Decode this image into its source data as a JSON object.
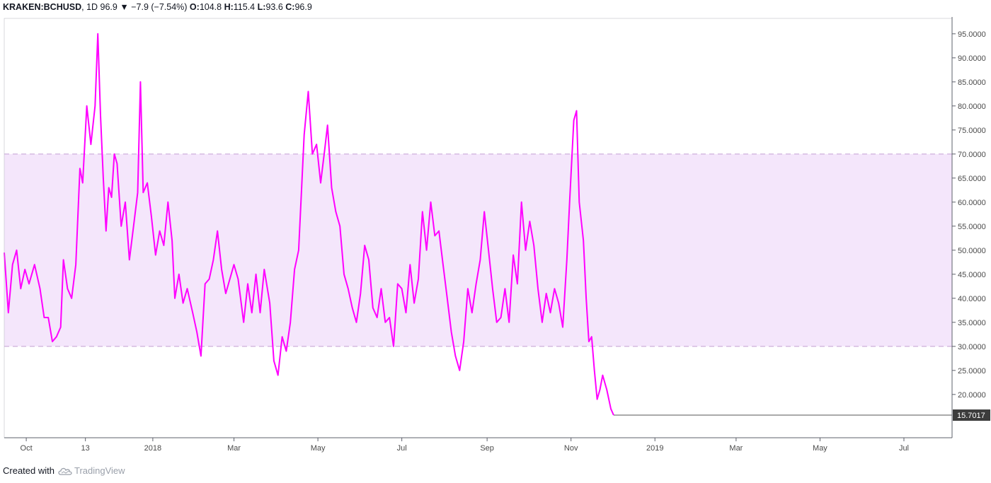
{
  "header": {
    "symbol": "KRAKEN:BCHUSD",
    "interval": "1D",
    "last": "96.9",
    "change_arrow": "▼",
    "change": "−7.9 (−7.54%)",
    "o_label": "O:",
    "o": "104.8",
    "h_label": "H:",
    "h": "115.4",
    "l_label": "L:",
    "l": "93.6",
    "c_label": "C:",
    "c": "96.9"
  },
  "footer": {
    "created_with": "Created with",
    "brand": "TradingView",
    "logo_icon": "tradingview-cloud-icon"
  },
  "colors": {
    "line": "#ff00ff",
    "band_fill": "#f4e6fb",
    "band_border": "#c9a8d8",
    "axis_border": "#5d606b",
    "price_label_bg": "#3c3c3c"
  },
  "chart_data": {
    "type": "line",
    "title": "",
    "xlabel": "",
    "ylabel": "",
    "ylim": [
      11.0,
      98.5
    ],
    "grid": false,
    "band": {
      "upper": 70.0,
      "lower": 30.0
    },
    "last_value_label": "15.7017",
    "last_value": 15.7017,
    "y_ticks": [
      20,
      25,
      30,
      35,
      40,
      45,
      50,
      55,
      60,
      65,
      70,
      75,
      80,
      85,
      90,
      95
    ],
    "y_tick_labels": [
      "20.0000",
      "25.0000",
      "30.0000",
      "35.0000",
      "40.0000",
      "45.0000",
      "50.0000",
      "55.0000",
      "60.0000",
      "65.0000",
      "70.0000",
      "75.0000",
      "80.0000",
      "85.0000",
      "90.0000",
      "95.0000"
    ],
    "x_tick_labels": [
      "Oct",
      "13",
      "2018",
      "Mar",
      "May",
      "Jul",
      "Sep",
      "Nov",
      "2019",
      "Mar",
      "May",
      "Jul"
    ],
    "x_ticks": [
      "2017-10-01",
      "2017-11-13",
      "2018-01-01",
      "2018-03-01",
      "2018-05-01",
      "2018-07-01",
      "2018-09-01",
      "2018-11-01",
      "2019-01-01",
      "2019-03-01",
      "2019-05-01",
      "2019-07-01"
    ],
    "x_domain": [
      "2017-09-15",
      "2019-08-05"
    ],
    "series": [
      {
        "points": [
          [
            "2017-09-15",
            49.5
          ],
          [
            "2017-09-18",
            37
          ],
          [
            "2017-09-21",
            47
          ],
          [
            "2017-09-24",
            50
          ],
          [
            "2017-09-27",
            42
          ],
          [
            "2017-09-30",
            46
          ],
          [
            "2017-10-03",
            43
          ],
          [
            "2017-10-07",
            47
          ],
          [
            "2017-10-11",
            42
          ],
          [
            "2017-10-14",
            36
          ],
          [
            "2017-10-17",
            36
          ],
          [
            "2017-10-20",
            31
          ],
          [
            "2017-10-23",
            32
          ],
          [
            "2017-10-26",
            34
          ],
          [
            "2017-10-28",
            48
          ],
          [
            "2017-10-31",
            42
          ],
          [
            "2017-11-03",
            40
          ],
          [
            "2017-11-06",
            47
          ],
          [
            "2017-11-09",
            67
          ],
          [
            "2017-11-11",
            64
          ],
          [
            "2017-11-14",
            80
          ],
          [
            "2017-11-17",
            72
          ],
          [
            "2017-11-20",
            80
          ],
          [
            "2017-11-22",
            95
          ],
          [
            "2017-11-24",
            78
          ],
          [
            "2017-11-26",
            65
          ],
          [
            "2017-11-28",
            54
          ],
          [
            "2017-11-30",
            63
          ],
          [
            "2017-12-02",
            61
          ],
          [
            "2017-12-04",
            70
          ],
          [
            "2017-12-06",
            68
          ],
          [
            "2017-12-09",
            55
          ],
          [
            "2017-12-12",
            60
          ],
          [
            "2017-12-15",
            48
          ],
          [
            "2017-12-18",
            55
          ],
          [
            "2017-12-21",
            62
          ],
          [
            "2017-12-23",
            85
          ],
          [
            "2017-12-25",
            62
          ],
          [
            "2017-12-28",
            64
          ],
          [
            "2017-12-31",
            57
          ],
          [
            "2018-01-03",
            49
          ],
          [
            "2018-01-06",
            54
          ],
          [
            "2018-01-09",
            51
          ],
          [
            "2018-01-12",
            60
          ],
          [
            "2018-01-15",
            52
          ],
          [
            "2018-01-17",
            40
          ],
          [
            "2018-01-20",
            45
          ],
          [
            "2018-01-23",
            39
          ],
          [
            "2018-01-26",
            42
          ],
          [
            "2018-01-30",
            37
          ],
          [
            "2018-02-02",
            33
          ],
          [
            "2018-02-05",
            28
          ],
          [
            "2018-02-08",
            43
          ],
          [
            "2018-02-11",
            44
          ],
          [
            "2018-02-14",
            48
          ],
          [
            "2018-02-17",
            54
          ],
          [
            "2018-02-20",
            46
          ],
          [
            "2018-02-23",
            41
          ],
          [
            "2018-02-26",
            44
          ],
          [
            "2018-03-01",
            47
          ],
          [
            "2018-03-04",
            44
          ],
          [
            "2018-03-08",
            35
          ],
          [
            "2018-03-11",
            43
          ],
          [
            "2018-03-14",
            37
          ],
          [
            "2018-03-17",
            45
          ],
          [
            "2018-03-20",
            37
          ],
          [
            "2018-03-23",
            46
          ],
          [
            "2018-03-27",
            39
          ],
          [
            "2018-03-30",
            27
          ],
          [
            "2018-04-02",
            24
          ],
          [
            "2018-04-05",
            32
          ],
          [
            "2018-04-08",
            29
          ],
          [
            "2018-04-11",
            35
          ],
          [
            "2018-04-14",
            46
          ],
          [
            "2018-04-17",
            50
          ],
          [
            "2018-04-21",
            74
          ],
          [
            "2018-04-24",
            83
          ],
          [
            "2018-04-27",
            70
          ],
          [
            "2018-04-30",
            72
          ],
          [
            "2018-05-03",
            64
          ],
          [
            "2018-05-06",
            71
          ],
          [
            "2018-05-08",
            76
          ],
          [
            "2018-05-11",
            63
          ],
          [
            "2018-05-14",
            58
          ],
          [
            "2018-05-17",
            55
          ],
          [
            "2018-05-20",
            45
          ],
          [
            "2018-05-23",
            42
          ],
          [
            "2018-05-26",
            38
          ],
          [
            "2018-05-29",
            35
          ],
          [
            "2018-06-01",
            41
          ],
          [
            "2018-06-04",
            51
          ],
          [
            "2018-06-07",
            48
          ],
          [
            "2018-06-10",
            38
          ],
          [
            "2018-06-13",
            36
          ],
          [
            "2018-06-16",
            42
          ],
          [
            "2018-06-19",
            35
          ],
          [
            "2018-06-22",
            36
          ],
          [
            "2018-06-25",
            30
          ],
          [
            "2018-06-28",
            43
          ],
          [
            "2018-07-01",
            42
          ],
          [
            "2018-07-04",
            37
          ],
          [
            "2018-07-07",
            47
          ],
          [
            "2018-07-10",
            39
          ],
          [
            "2018-07-13",
            44
          ],
          [
            "2018-07-16",
            58
          ],
          [
            "2018-07-19",
            50
          ],
          [
            "2018-07-22",
            60
          ],
          [
            "2018-07-25",
            53
          ],
          [
            "2018-07-28",
            54
          ],
          [
            "2018-07-31",
            47
          ],
          [
            "2018-08-03",
            40
          ],
          [
            "2018-08-06",
            33
          ],
          [
            "2018-08-09",
            28
          ],
          [
            "2018-08-12",
            25
          ],
          [
            "2018-08-15",
            31
          ],
          [
            "2018-08-18",
            42
          ],
          [
            "2018-08-21",
            37
          ],
          [
            "2018-08-24",
            43
          ],
          [
            "2018-08-27",
            48
          ],
          [
            "2018-08-30",
            58
          ],
          [
            "2018-09-02",
            50
          ],
          [
            "2018-09-05",
            42
          ],
          [
            "2018-09-08",
            35
          ],
          [
            "2018-09-11",
            36
          ],
          [
            "2018-09-14",
            42
          ],
          [
            "2018-09-17",
            35
          ],
          [
            "2018-09-20",
            49
          ],
          [
            "2018-09-23",
            43
          ],
          [
            "2018-09-26",
            60
          ],
          [
            "2018-09-29",
            50
          ],
          [
            "2018-10-02",
            56
          ],
          [
            "2018-10-05",
            51
          ],
          [
            "2018-10-08",
            42
          ],
          [
            "2018-10-11",
            35
          ],
          [
            "2018-10-14",
            41
          ],
          [
            "2018-10-17",
            37
          ],
          [
            "2018-10-20",
            42
          ],
          [
            "2018-10-23",
            39
          ],
          [
            "2018-10-26",
            34
          ],
          [
            "2018-10-29",
            48
          ],
          [
            "2018-10-31",
            60
          ],
          [
            "2018-11-03",
            77
          ],
          [
            "2018-11-05",
            79
          ],
          [
            "2018-11-07",
            60
          ],
          [
            "2018-11-10",
            52
          ],
          [
            "2018-11-12",
            40
          ],
          [
            "2018-11-14",
            31
          ],
          [
            "2018-11-16",
            32
          ],
          [
            "2018-11-18",
            25
          ],
          [
            "2018-11-20",
            19
          ],
          [
            "2018-11-22",
            21
          ],
          [
            "2018-11-24",
            24
          ],
          [
            "2018-11-27",
            21
          ],
          [
            "2018-11-30",
            17
          ],
          [
            "2018-12-02",
            15.7017
          ],
          [
            "2019-08-01",
            15.7017
          ]
        ]
      }
    ]
  }
}
